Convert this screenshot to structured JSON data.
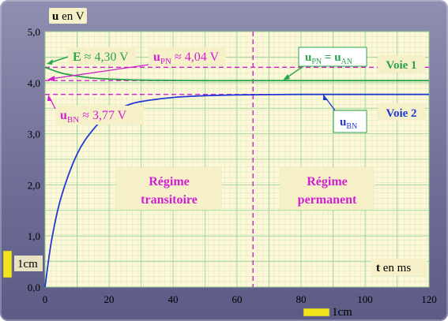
{
  "chart_data": {
    "type": "line",
    "xlabel": "t en ms",
    "ylabel": "u en V",
    "xlim": [
      0,
      120
    ],
    "ylim": [
      0,
      5
    ],
    "x_ticks": [
      "0",
      "20",
      "40",
      "60",
      "80",
      "100",
      "120"
    ],
    "y_ticks": [
      "0,0",
      "1,0",
      "2,0",
      "3,0",
      "4,0",
      "5,0"
    ],
    "grid": true,
    "series": [
      {
        "name": "Voie 1",
        "color": "#2aa44a",
        "x": [
          0,
          5,
          10,
          15,
          20,
          30,
          40,
          50,
          60,
          80,
          100,
          120
        ],
        "y": [
          4.3,
          4.19,
          4.13,
          4.09,
          4.07,
          4.05,
          4.045,
          4.04,
          4.04,
          4.04,
          4.04,
          4.04
        ]
      },
      {
        "name": "Voie 2",
        "color": "#1f38d6",
        "x": [
          0,
          2,
          5,
          10,
          15,
          20,
          25,
          30,
          40,
          50,
          60,
          70,
          80,
          100,
          120
        ],
        "y": [
          0.0,
          0.9,
          1.75,
          2.6,
          3.08,
          3.38,
          3.54,
          3.63,
          3.71,
          3.745,
          3.76,
          3.765,
          3.77,
          3.77,
          3.77
        ]
      }
    ],
    "reference_lines": [
      {
        "axis": "y",
        "value": 4.3,
        "color": "#d020d0"
      },
      {
        "axis": "y",
        "value": 4.04,
        "color": "#d020d0"
      },
      {
        "axis": "y",
        "value": 3.77,
        "color": "#d020d0"
      },
      {
        "axis": "x",
        "value": 65,
        "color": "#d020d0"
      }
    ],
    "annotations": {
      "E": {
        "main": "E",
        "rest": " ≈ 4,30 V"
      },
      "upn": {
        "main": "u",
        "sub": "PN",
        "rest": " ≈ 4,04 V"
      },
      "ubn": {
        "main": "u",
        "sub": "BN",
        "rest": " ≈ 3,77 V"
      },
      "upn_uan": {
        "a": "u",
        "a_sub": "PN",
        "eq": " = ",
        "b": "u",
        "b_sub": "AN"
      },
      "ubn_right": {
        "main": "u",
        "sub": "BN"
      },
      "voie1": "Voie 1",
      "voie2": "Voie 2",
      "regime_transitoire": [
        "Régime",
        "transitoire"
      ],
      "regime_permanent": [
        "Régime",
        "permanent"
      ]
    },
    "scale_labels": {
      "vertical": "1cm",
      "horizontal": "1cm"
    }
  },
  "colors": {
    "frame": "#6f6f98",
    "plot_background": "#fff8d8",
    "grid": "#a6d7a0",
    "magenta": "#d020d0",
    "green": "#2aa44a",
    "blue": "#1f38d6",
    "scale_bar": "#f3e31a"
  }
}
